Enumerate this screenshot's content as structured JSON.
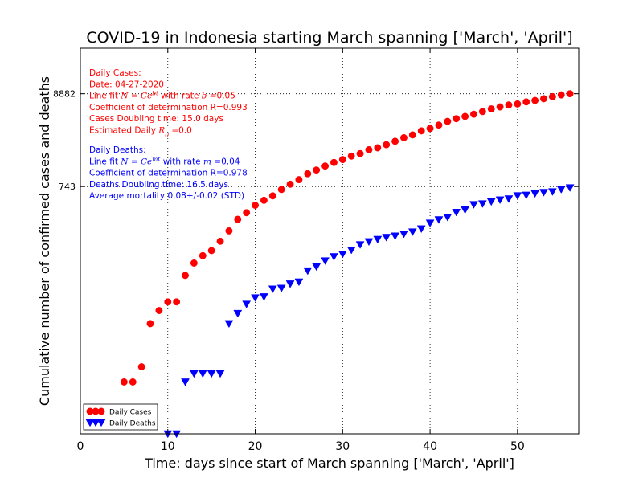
{
  "chart_data": {
    "type": "scatter",
    "title": "COVID-19 in Indonesia starting March spanning ['March', 'April']",
    "xlabel": "Time: days since start of March spanning ['March', 'April']",
    "ylabel": "Cumulative number of confirmed cases and deaths",
    "xlim": [
      0,
      57
    ],
    "ylim": [
      1,
      30000
    ],
    "yscale": "log",
    "xticks": [
      0,
      10,
      20,
      30,
      40,
      50
    ],
    "yticks": [
      {
        "value": 743,
        "label": "743"
      },
      {
        "value": 8882,
        "label": "8882"
      }
    ],
    "grid": true,
    "legend_position": "lower-left",
    "legend": [
      {
        "label": "Daily Cases",
        "color": "#ff0000",
        "marker": "circle"
      },
      {
        "label": "Daily Deaths",
        "color": "#0000ff",
        "marker": "triangle-down"
      }
    ],
    "annotations": {
      "cases": {
        "color": "#ff0000",
        "lines": [
          {
            "text": "Daily Cases:"
          },
          {
            "text": "Date: 04-27-2020"
          },
          {
            "parts": [
              {
                "t": "Line fit "
              },
              {
                "t": "N = Ce",
                "m": true
              },
              {
                "t": "bt",
                "m": true,
                "sup": true
              },
              {
                "t": " with rate "
              },
              {
                "t": "b",
                "m": true
              },
              {
                "t": " =0.05"
              }
            ]
          },
          {
            "text": "Coefficient of determination R=0.993"
          },
          {
            "text": "Cases Doubling time: 15.0 days"
          },
          {
            "parts": [
              {
                "t": "Estimated Daily "
              },
              {
                "t": "R",
                "m": true
              },
              {
                "t": "0",
                "m": true,
                "sub": true
              },
              {
                "t": " =0.0"
              }
            ]
          }
        ]
      },
      "deaths": {
        "color": "#0000ff",
        "lines": [
          {
            "text": "Daily Deaths:"
          },
          {
            "parts": [
              {
                "t": "Line fit "
              },
              {
                "t": "N = Ce",
                "m": true
              },
              {
                "t": "mt",
                "m": true,
                "sup": true
              },
              {
                "t": " with rate "
              },
              {
                "t": "m",
                "m": true
              },
              {
                "t": " =0.04"
              }
            ]
          },
          {
            "text": "Coefficient of determination R=0.978"
          },
          {
            "text": "Deaths Doubling time: 16.5 days"
          },
          {
            "text": "Average mortality 0.08+/-0.02 (STD)"
          }
        ]
      }
    },
    "series": [
      {
        "name": "Daily Cases",
        "color": "#ff0000",
        "marker": "circle",
        "x": [
          1,
          2,
          3,
          4,
          5,
          6,
          7,
          8,
          9,
          10,
          11,
          12,
          13,
          14,
          15,
          16,
          17,
          18,
          19,
          20,
          21,
          22,
          23,
          24,
          25,
          26,
          27,
          28,
          29,
          30,
          31,
          32,
          33,
          34,
          35,
          36,
          37,
          38,
          39,
          40,
          41,
          42,
          43,
          44,
          45,
          46,
          47,
          48,
          49,
          50,
          51,
          52,
          53,
          54,
          55,
          56
        ],
        "y": [
          2,
          2,
          2,
          2,
          4,
          4,
          6,
          19,
          27,
          34,
          34,
          69,
          96,
          117,
          134,
          172,
          227,
          309,
          369,
          450,
          514,
          579,
          686,
          790,
          893,
          1046,
          1155,
          1285,
          1414,
          1528,
          1677,
          1790,
          1986,
          2092,
          2273,
          2491,
          2738,
          2956,
          3293,
          3512,
          3842,
          4241,
          4557,
          4839,
          5136,
          5516,
          5923,
          6248,
          6575,
          6760,
          7135,
          7418,
          7775,
          8211,
          8607,
          8882
        ]
      },
      {
        "name": "Daily Deaths",
        "color": "#0000ff",
        "marker": "triangle-down",
        "x": [
          10,
          11,
          12,
          13,
          14,
          15,
          16,
          17,
          18,
          19,
          20,
          21,
          22,
          23,
          24,
          25,
          26,
          27,
          28,
          29,
          30,
          31,
          32,
          33,
          34,
          35,
          36,
          37,
          38,
          39,
          40,
          41,
          42,
          43,
          44,
          45,
          46,
          47,
          48,
          49,
          50,
          51,
          52,
          53,
          54,
          55,
          56
        ],
        "y": [
          1,
          1,
          4,
          5,
          5,
          5,
          5,
          19,
          25,
          32,
          38,
          39,
          48,
          49,
          55,
          58,
          78,
          87,
          102,
          114,
          122,
          136,
          157,
          170,
          181,
          191,
          198,
          209,
          221,
          240,
          280,
          306,
          327,
          373,
          399,
          459,
          469,
          496,
          520,
          535,
          582,
          590,
          616,
          635,
          647,
          689,
          720
        ]
      }
    ]
  }
}
